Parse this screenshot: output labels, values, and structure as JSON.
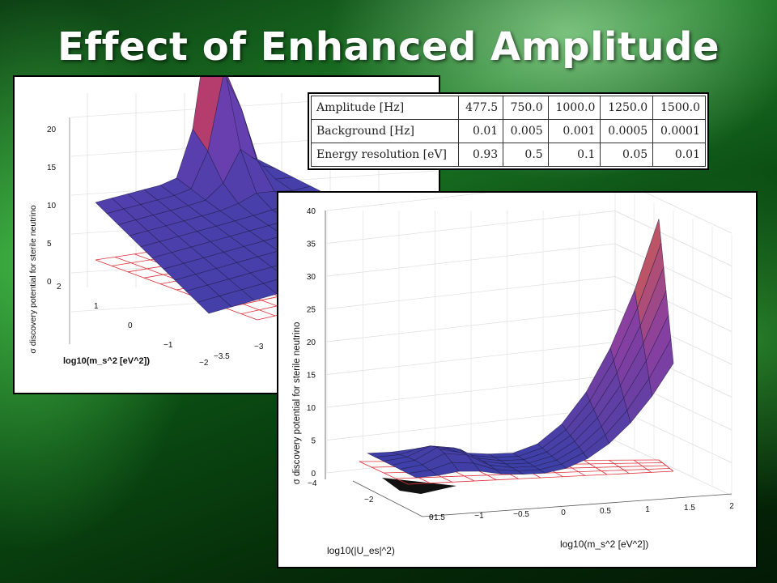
{
  "slide": {
    "title": "Effect of Enhanced Amplitude"
  },
  "table": {
    "rows": [
      {
        "label": "Amplitude [Hz]",
        "values": [
          "477.5",
          "750.0",
          "1000.0",
          "1250.0",
          "1500.0"
        ]
      },
      {
        "label": "Background [Hz]",
        "values": [
          "0.01",
          "0.005",
          "0.001",
          "0.0005",
          "0.0001"
        ]
      },
      {
        "label": "Energy resolution [eV]",
        "values": [
          "0.93",
          "0.5",
          "0.1",
          "0.05",
          "0.01"
        ]
      }
    ]
  },
  "chart_data": [
    {
      "type": "surface",
      "zlabel": "σ discovery potential for sterile neutrino",
      "xlabel": "log10(m_s^2 [eV^2])",
      "zticks": [
        "0",
        "5",
        "10",
        "15",
        "20"
      ],
      "yticks": [
        "2",
        "1",
        "0",
        "−1",
        "−2"
      ],
      "xticks": [
        "−3.5",
        "−3"
      ],
      "zlim": [
        0,
        20
      ],
      "peak_value": 22,
      "threshold_plane": 3,
      "colors": {
        "low": "#3b3fa8",
        "mid": "#6a3fb0",
        "high": "#ff3b2a"
      }
    },
    {
      "type": "surface",
      "zlabel": "σ discovery potential for sterile neutrino",
      "xlabel": "log10(m_s^2  [eV^2])",
      "ylabel": "log10(|U_es|^2)",
      "zticks": [
        "0",
        "5",
        "10",
        "15",
        "20",
        "25",
        "30",
        "35",
        "40"
      ],
      "yticks": [
        "−4",
        "−2",
        "0"
      ],
      "xticks": [
        "−1.5",
        "−1",
        "−0.5",
        "0",
        "0.5",
        "1",
        "1.5",
        "2"
      ],
      "zlim": [
        0,
        40
      ],
      "xlim": [
        -1.5,
        2
      ],
      "ylim": [
        -4,
        0
      ],
      "peak_value": 36,
      "threshold_plane": 2,
      "colors": {
        "low": "#3b3fa8",
        "mid": "#8a3fa0",
        "high": "#f26a2a"
      }
    }
  ]
}
